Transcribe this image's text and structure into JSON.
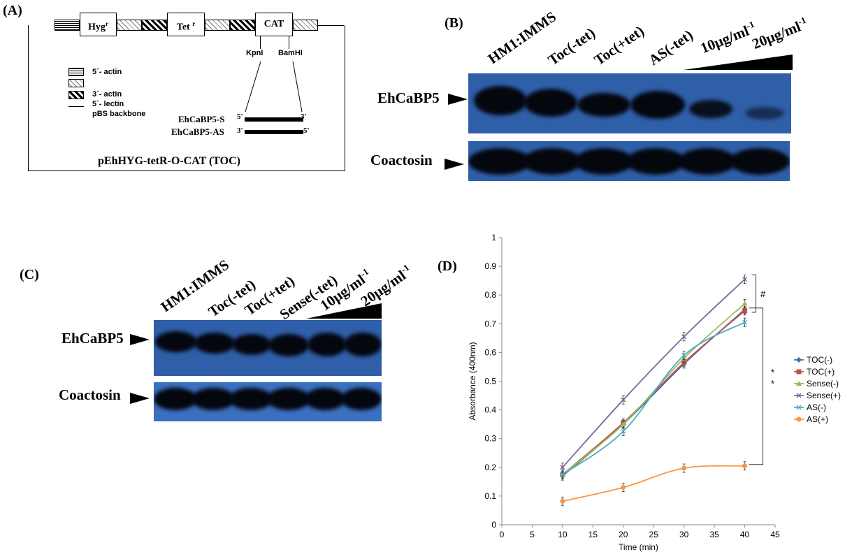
{
  "panels": {
    "a": "(A)",
    "b": "(B)",
    "c": "(C)",
    "d": "(D)"
  },
  "panelA": {
    "hyg": "Hyg",
    "hyg_sup": "r",
    "tet": "Tet",
    "tet_sup": "r",
    "cat": "CAT",
    "kpn": "KpnI",
    "bam": "BamHI",
    "legend": [
      "5´- actin",
      "3´- actin",
      "5´- lectin",
      "pBS backbone"
    ],
    "sense": "EhCaBP5-S",
    "antisense": "EhCaBP5-AS",
    "five": "5'",
    "three": "3'",
    "plasmid": "pEhHYG-tetR-O-CAT (TOC)"
  },
  "panelB": {
    "lanes": [
      "HM1:IMMS",
      "Toc(-tet)",
      "Toc(+tet)",
      "AS(-tet)",
      "10μg/ml",
      "20μg/ml"
    ],
    "sup": "-1",
    "row1": "EhCaBP5",
    "row2": "Coactosin"
  },
  "panelC": {
    "lanes": [
      "HM1:IMMS",
      "Toc(-tet)",
      "Toc(+tet)",
      "Sense(-tet)",
      "10μg/ml",
      "20μg/ml"
    ],
    "sup": "-1",
    "row1": "EhCaBP5",
    "row2": "Coactosin"
  },
  "chart_data": {
    "type": "line",
    "xlabel": "Time (min)",
    "ylabel": "Absorbance (400nm)",
    "xlim": [
      0,
      45
    ],
    "ylim": [
      0,
      1
    ],
    "xticks": [
      0,
      5,
      10,
      15,
      20,
      25,
      30,
      35,
      40,
      45
    ],
    "yticks": [
      0,
      0.1,
      0.2,
      0.3,
      0.4,
      0.5,
      0.6,
      0.7,
      0.8,
      0.9,
      1
    ],
    "x": [
      10,
      20,
      30,
      40
    ],
    "series": [
      {
        "name": "TOC(-)",
        "values": [
          0.17,
          0.35,
          0.56,
          0.75
        ],
        "color": "#4a6fa5",
        "marker": "diamond"
      },
      {
        "name": "TOC(+)",
        "values": [
          0.175,
          0.355,
          0.565,
          0.745
        ],
        "color": "#c0504d",
        "marker": "square"
      },
      {
        "name": "Sense(-)",
        "values": [
          0.175,
          0.35,
          0.58,
          0.77
        ],
        "color": "#9bbb59",
        "marker": "triangle"
      },
      {
        "name": "Sense(+)",
        "values": [
          0.2,
          0.435,
          0.655,
          0.855
        ],
        "color": "#8064a2",
        "marker": "x"
      },
      {
        "name": "AS(-)",
        "values": [
          0.175,
          0.325,
          0.59,
          0.705
        ],
        "color": "#4bacc6",
        "marker": "star"
      },
      {
        "name": "AS(+)",
        "values": [
          0.082,
          0.13,
          0.197,
          0.205
        ],
        "color": "#f79646",
        "marker": "circle"
      }
    ],
    "annotations": [
      "#",
      "*",
      "*"
    ],
    "legend_position": "right"
  },
  "colors": {
    "blot": "#2f5fa8",
    "band": "#05070f"
  }
}
